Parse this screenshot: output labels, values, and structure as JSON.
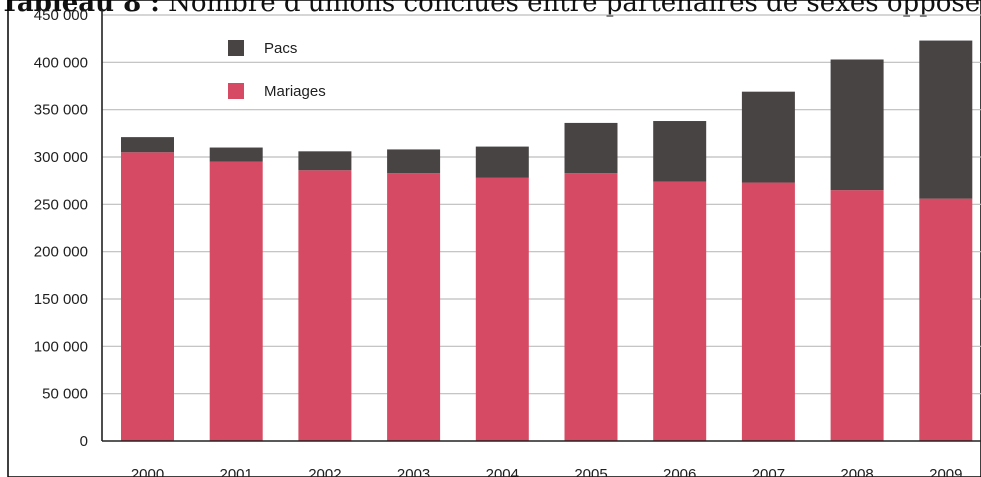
{
  "title": {
    "label": "Tableau 8 :",
    "text": "Nombre d'unions conclues entre partenaires de sexes opposés, F"
  },
  "chart_data": {
    "type": "bar",
    "stacked": true,
    "categories": [
      "2000",
      "2001",
      "2002",
      "2003",
      "2004",
      "2005",
      "2006",
      "2007",
      "2008",
      "2009"
    ],
    "series": [
      {
        "name": "Mariages",
        "color": "#d64b63",
        "values": [
          305000,
          295000,
          286000,
          283000,
          278000,
          283000,
          274000,
          273000,
          265000,
          256000
        ]
      },
      {
        "name": "Pacs",
        "color": "#484444",
        "values": [
          16000,
          15000,
          20000,
          25000,
          33000,
          53000,
          64000,
          96000,
          138000,
          167000
        ]
      }
    ],
    "ylim": [
      0,
      450000
    ],
    "yticks": [
      "0",
      "50 000",
      "100 000",
      "150 000",
      "200 000",
      "250 000",
      "300 000",
      "350 000",
      "400 000",
      "450 000"
    ],
    "grid": true,
    "legend": "top-left"
  }
}
